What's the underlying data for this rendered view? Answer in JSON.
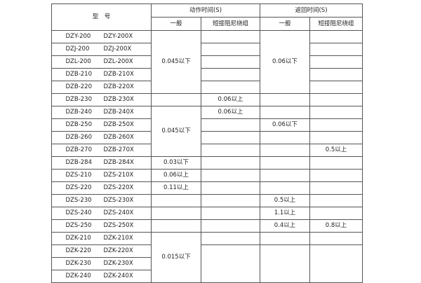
{
  "header": {
    "model": "型　号",
    "action_time": "动作时间(S)",
    "return_time": "返回时间(S)",
    "general": "一般",
    "short_damping": "短接阻尼绕组"
  },
  "rows": [
    {
      "a": "DZY-200",
      "b": "DZY-200X"
    },
    {
      "a": "DZJ-200",
      "b": "DZJ-200X"
    },
    {
      "a": "DZL-200",
      "b": "DZL-200X"
    },
    {
      "a": "DZB-210",
      "b": "DZB-210X"
    },
    {
      "a": "DZB-220",
      "b": "DZB-220X"
    },
    {
      "a": "DZB-230",
      "b": "DZB-230X"
    },
    {
      "a": "DZB-240",
      "b": "DZB-240X"
    },
    {
      "a": "DZB-250",
      "b": "DZB-250X"
    },
    {
      "a": "DZB-260",
      "b": "DZB-260X"
    },
    {
      "a": "DZB-270",
      "b": "DZB-270X"
    },
    {
      "a": "DZB-284",
      "b": "DZB-284X"
    },
    {
      "a": "DZS-210",
      "b": "DZS-210X"
    },
    {
      "a": "DZS-220",
      "b": "DZS-220X"
    },
    {
      "a": "DZS-230",
      "b": "DZS-230X"
    },
    {
      "a": "DZS-240",
      "b": "DZS-240X"
    },
    {
      "a": "DZS-250",
      "b": "DZS-250X"
    },
    {
      "a": "DZK-210",
      "b": "DZK-210X"
    },
    {
      "a": "DZK-220",
      "b": "DZK-220X"
    },
    {
      "a": "DZK-230",
      "b": "DZK-230X"
    },
    {
      "a": "DZK-240",
      "b": "DZK-240X"
    }
  ],
  "values": {
    "act_gen_1": "0.045以下",
    "ret_gen_1": "0.06以下",
    "act_sd_230": "0.06以上",
    "act_gen_2": "0.045以下",
    "act_sd_240": "0.06以上",
    "ret_gen_250": "0.06以下",
    "ret_sd_270": "0.5以上",
    "act_gen_284": "0.03以下",
    "act_gen_s210": "0.06以上",
    "act_gen_s220": "0.11以上",
    "ret_gen_s230": "0.5以上",
    "ret_gen_s240": "1.1以上",
    "ret_gen_s250": "0.4以上",
    "ret_sd_s250": "0.8以上",
    "act_gen_k": "0.015以下"
  }
}
